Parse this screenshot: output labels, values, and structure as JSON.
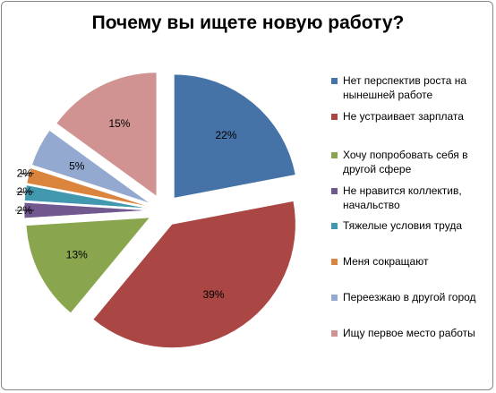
{
  "chart_data": {
    "type": "pie",
    "title": "Почему вы ищете новую работу?",
    "legend_position": "right",
    "start_angle_deg": 0,
    "exploded": true,
    "slices": [
      {
        "label": "Нет перспектив роста на нынешней работе",
        "value": 22,
        "value_label": "22%",
        "color": "#4572A7"
      },
      {
        "label": "Не устраивает зарплата",
        "value": 39,
        "value_label": "39%",
        "color": "#AA4643"
      },
      {
        "label": "Хочу попробовать  себя в другой сфере",
        "value": 13,
        "value_label": "13%",
        "color": "#89A54E"
      },
      {
        "label": "Не нравится коллектив, начальство",
        "value": 2,
        "value_label": "2%",
        "color": "#71588F"
      },
      {
        "label": "Тяжелые условия труда",
        "value": 2,
        "value_label": "2%",
        "color": "#4198AF"
      },
      {
        "label": "Меня сокращают",
        "value": 2,
        "value_label": "2%",
        "color": "#DB843D"
      },
      {
        "label": "Переезжаю в другой город",
        "value": 5,
        "value_label": "5%",
        "color": "#93A9CF"
      },
      {
        "label": "Ищу первое место работы",
        "value": 15,
        "value_label": "15%",
        "color": "#D19392"
      }
    ]
  }
}
